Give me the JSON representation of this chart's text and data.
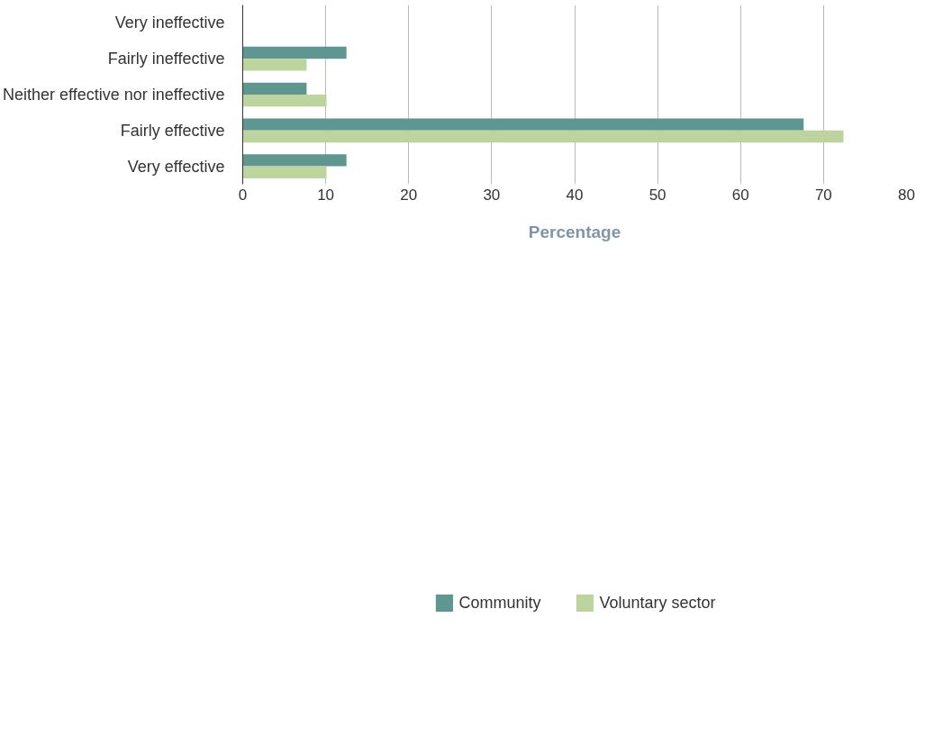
{
  "chart_data": {
    "type": "bar",
    "orientation": "horizontal",
    "xlabel": "Percentage",
    "categories": [
      "Very ineffective",
      "Fairly ineffective",
      "Neither effective nor ineffective",
      "Fairly effective",
      "Very effective"
    ],
    "series": [
      {
        "name": "Community",
        "color": "#5f9690",
        "values": [
          0,
          12.5,
          7.7,
          67.6,
          12.5
        ]
      },
      {
        "name": "Voluntary sector",
        "color": "#bdd49f",
        "values": [
          0,
          7.7,
          10.1,
          72.4,
          10.1
        ]
      }
    ],
    "xlim": [
      0,
      80
    ],
    "xticks": [
      0,
      10,
      20,
      30,
      40,
      50,
      60,
      70,
      80
    ],
    "grid": "x",
    "legend": "bottom"
  }
}
